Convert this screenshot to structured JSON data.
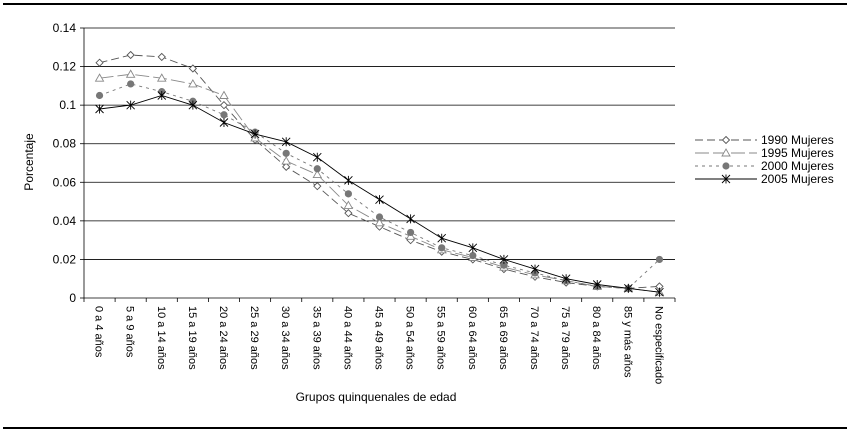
{
  "chart_data": {
    "type": "line",
    "title": "",
    "xlabel": "Grupos quinquenales de edad",
    "ylabel": "Porcentaje",
    "ylim": [
      0,
      0.14
    ],
    "yticks": [
      "0",
      "0.02",
      "0.04",
      "0.06",
      "0.08",
      "0.1",
      "0.12",
      "0.14"
    ],
    "grid": true,
    "legend_position": "right",
    "categories": [
      "0 a 4 años",
      "5 a 9 años",
      "10 a 14 años",
      "15 a 19 años",
      "20 a 24 años",
      "25 a 29 años",
      "30 a 34 años",
      "35 a 39 años",
      "40 a 44 años",
      "45 a 49 años",
      "50 a 54 años",
      "55 a 59 años",
      "60 a 64 años",
      "65 a 69 años",
      "70 a 74 años",
      "75 a 79 años",
      "80 a 84 años",
      "85 y más años",
      "No especificado"
    ],
    "series": [
      {
        "name": "1990 Mujeres",
        "marker": "diamond",
        "dash": "8,4",
        "color": "#555555",
        "values": [
          0.122,
          0.126,
          0.125,
          0.119,
          0.1,
          0.082,
          0.068,
          0.058,
          0.044,
          0.037,
          0.03,
          0.024,
          0.02,
          0.015,
          0.011,
          0.008,
          0.006,
          0.005,
          0.006
        ]
      },
      {
        "name": "1995 Mujeres",
        "marker": "triangle",
        "dash": "14,4",
        "color": "#888888",
        "values": [
          0.114,
          0.116,
          0.114,
          0.111,
          0.105,
          0.083,
          0.071,
          0.064,
          0.048,
          0.039,
          0.032,
          0.025,
          0.021,
          0.016,
          0.012,
          0.009,
          0.006,
          0.005,
          0.003
        ]
      },
      {
        "name": "2000 Mujeres",
        "marker": "circle",
        "dash": "3,4",
        "color": "#777777",
        "values": [
          0.105,
          0.111,
          0.107,
          0.102,
          0.095,
          0.086,
          0.075,
          0.067,
          0.054,
          0.042,
          0.034,
          0.026,
          0.022,
          0.017,
          0.013,
          0.009,
          0.006,
          0.005,
          0.02
        ]
      },
      {
        "name": "2005 Mujeres",
        "marker": "x",
        "dash": "",
        "color": "#000000",
        "values": [
          0.098,
          0.1,
          0.105,
          0.1,
          0.091,
          0.085,
          0.081,
          0.073,
          0.061,
          0.051,
          0.041,
          0.031,
          0.026,
          0.02,
          0.015,
          0.01,
          0.007,
          0.005,
          0.003
        ]
      }
    ]
  }
}
